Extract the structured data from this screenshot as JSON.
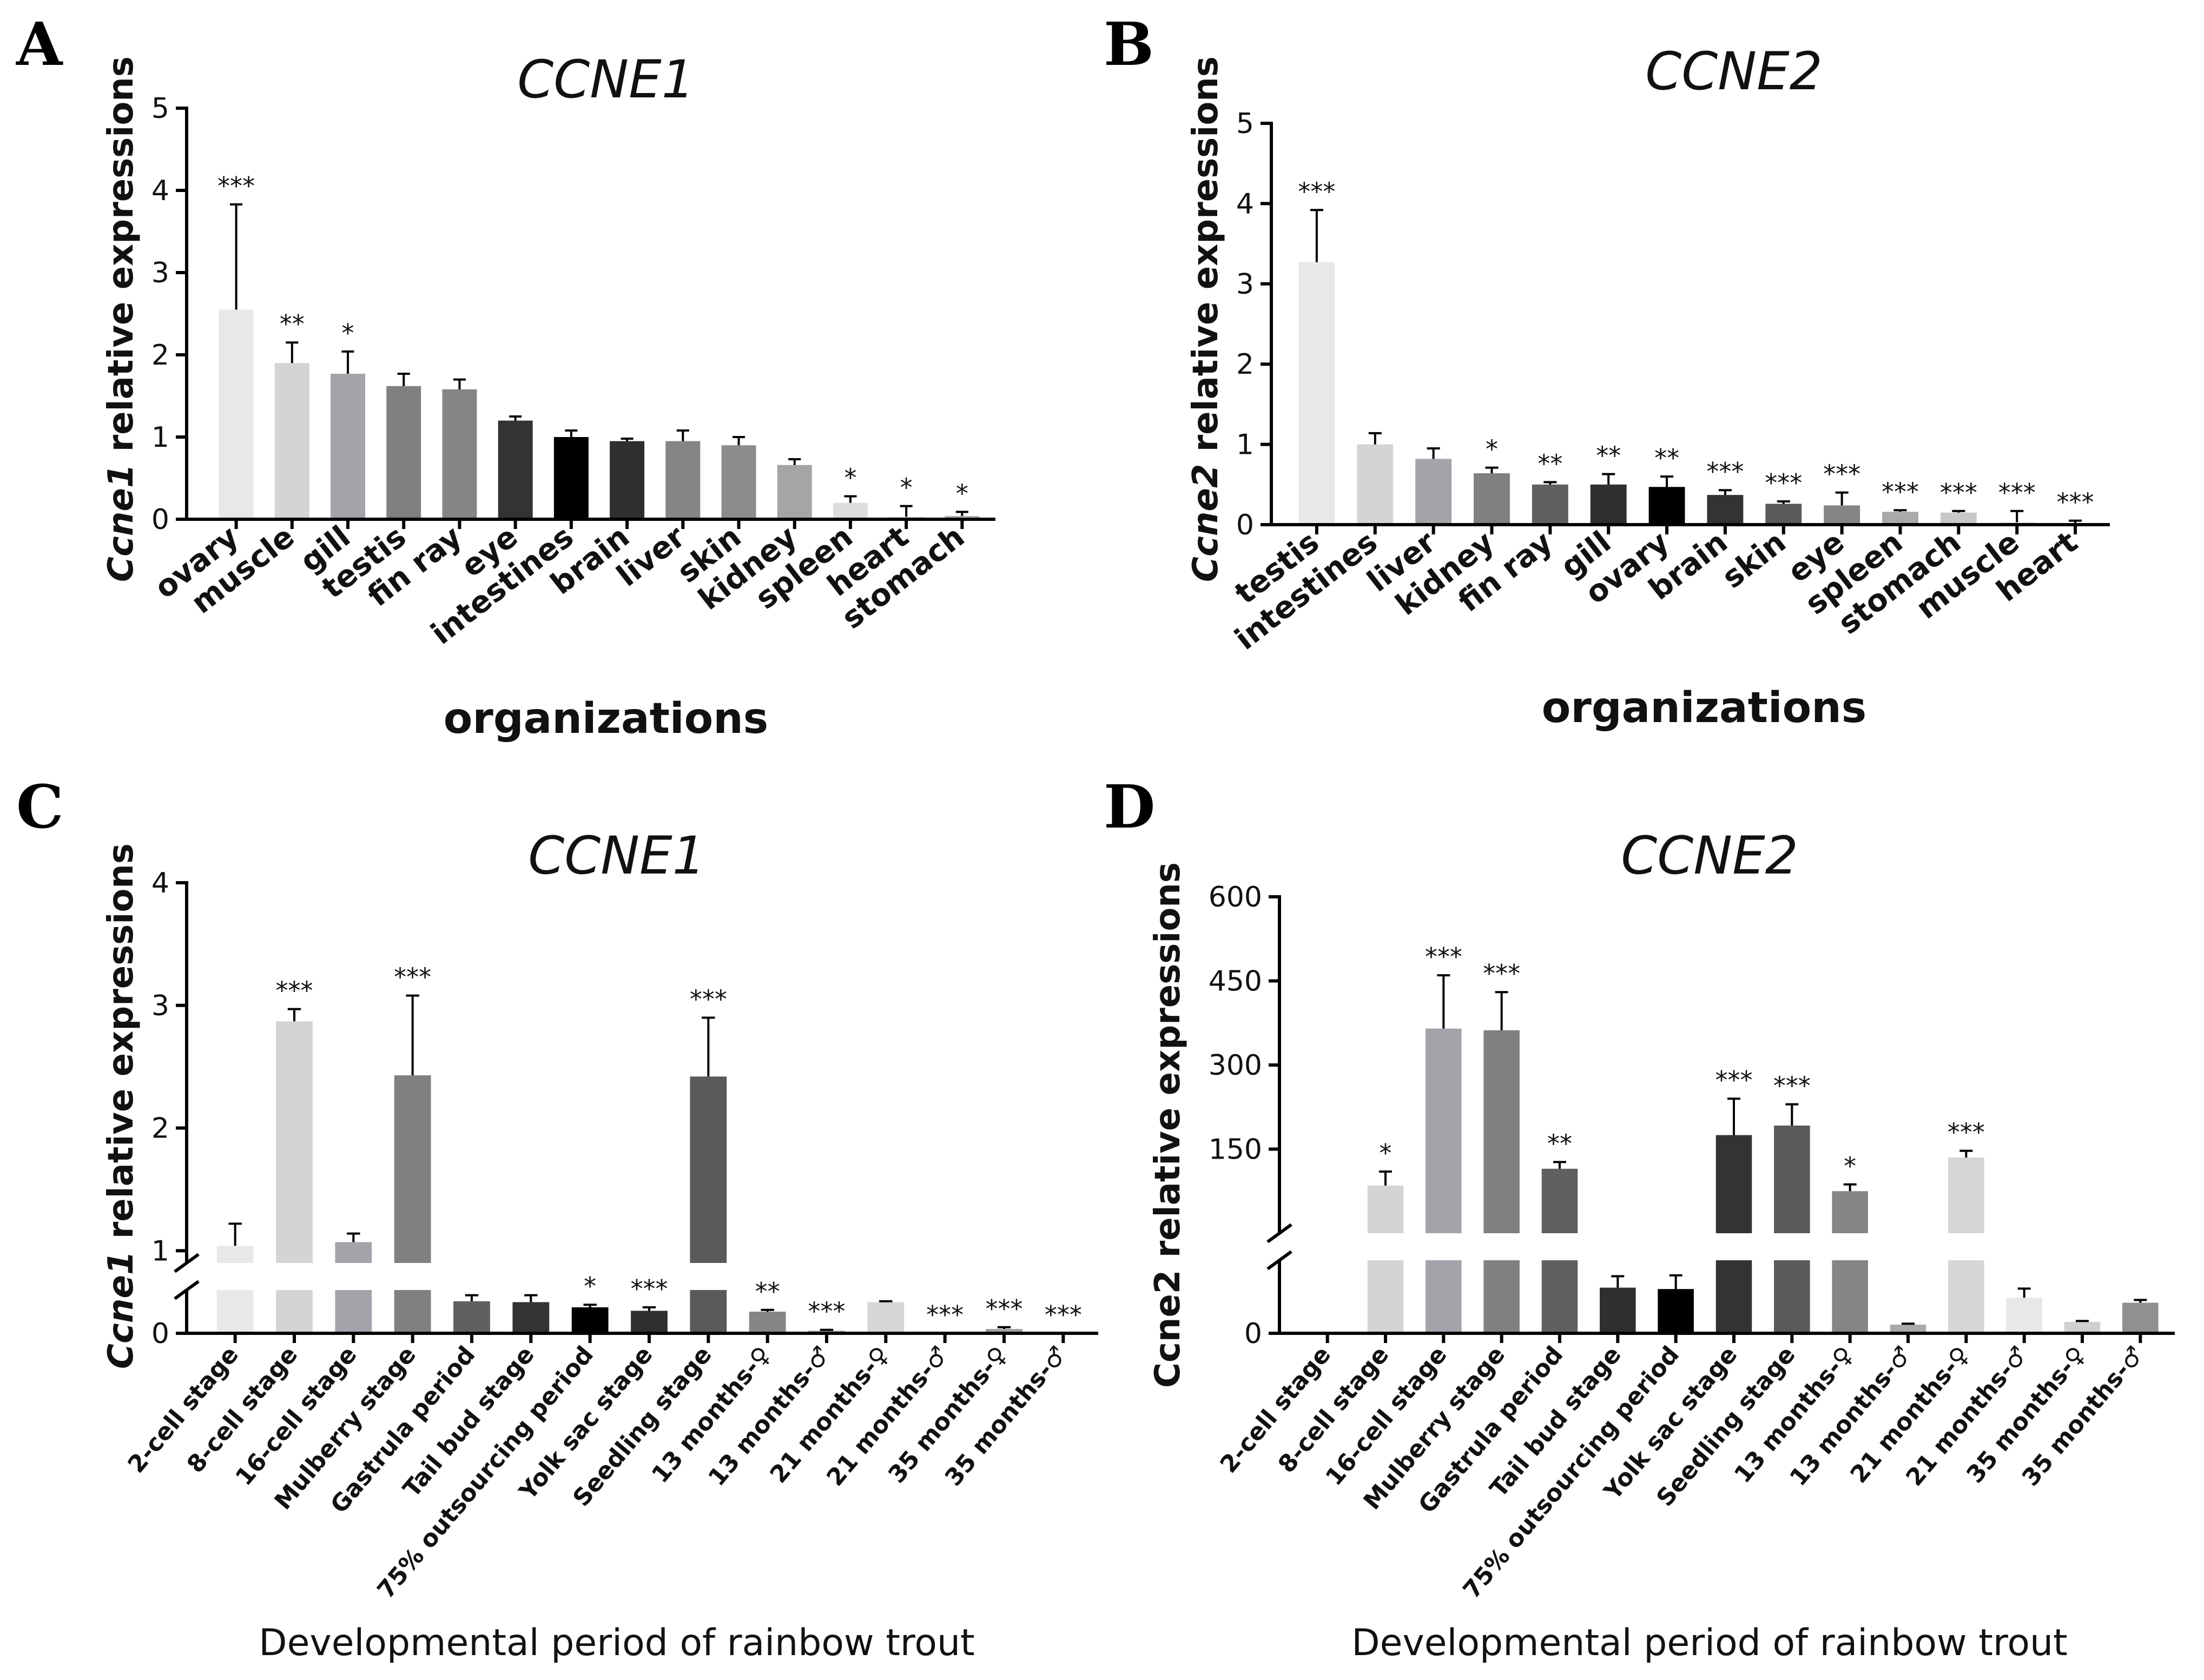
{
  "chart_data": [
    {
      "panel": "A",
      "type": "bar",
      "title": "CCNE1",
      "ylabel_gene": "Ccne1",
      "ylabel_rest": " relative expressions",
      "xlabel": "organizations",
      "ylim": [
        0,
        5
      ],
      "yticks": [
        0,
        1,
        2,
        3,
        4,
        5
      ],
      "categories": [
        "ovary",
        "muscle",
        "gill",
        "testis",
        "fin ray",
        "eye",
        "intestines",
        "brain",
        "liver",
        "skin",
        "kidney",
        "spleen",
        "heart",
        "stomach"
      ],
      "values": [
        2.55,
        1.9,
        1.77,
        1.62,
        1.58,
        1.2,
        1.0,
        0.95,
        0.95,
        0.9,
        0.66,
        0.2,
        0.03,
        0.04
      ],
      "errors": [
        1.28,
        0.25,
        0.27,
        0.15,
        0.12,
        0.05,
        0.08,
        0.03,
        0.13,
        0.1,
        0.07,
        0.08,
        0.13,
        0.05
      ],
      "significance": [
        "***",
        "**",
        "*",
        "",
        "",
        "",
        "",
        "",
        "",
        "",
        "",
        "*",
        "*",
        "*"
      ],
      "colors": [
        "#e8e8e8",
        "#d4d4d4",
        "#a3a3aa",
        "#808080",
        "#858585",
        "#333333",
        "#000000",
        "#2f2f2f",
        "#858585",
        "#8c8c8c",
        "#a5a5a5",
        "#dddddd",
        "#d8d8d8",
        "#b0b0b0"
      ]
    },
    {
      "panel": "B",
      "type": "bar",
      "title": "CCNE2",
      "ylabel_gene": "Ccne2",
      "ylabel_rest": " relative expressions",
      "xlabel": "organizations",
      "ylim": [
        0,
        5
      ],
      "yticks": [
        0,
        1,
        2,
        3,
        4,
        5
      ],
      "categories": [
        "testis",
        "intestines",
        "liver",
        "kidney",
        "fin ray",
        "gill",
        "ovary",
        "brain",
        "skin",
        "eye",
        "spleen",
        "stomach",
        "muscle",
        "heart"
      ],
      "values": [
        3.27,
        1.0,
        0.82,
        0.64,
        0.5,
        0.5,
        0.47,
        0.37,
        0.26,
        0.24,
        0.16,
        0.15,
        0.03,
        0.02
      ],
      "errors": [
        0.65,
        0.14,
        0.13,
        0.07,
        0.03,
        0.13,
        0.13,
        0.06,
        0.03,
        0.16,
        0.02,
        0.02,
        0.14,
        0.03
      ],
      "significance": [
        "***",
        "",
        "",
        "*",
        "**",
        "**",
        "**",
        "***",
        "***",
        "***",
        "***",
        "***",
        "***",
        "***"
      ],
      "colors": [
        "#e8e8e8",
        "#d4d4d4",
        "#a3a3aa",
        "#808080",
        "#606060",
        "#2f2f2f",
        "#000000",
        "#333333",
        "#5a5a5a",
        "#858585",
        "#aaaaaa",
        "#c8c8c8",
        "#e0e0e0",
        "#d0d0d0"
      ]
    },
    {
      "panel": "C",
      "type": "bar",
      "title": "CCNE1",
      "ylabel_gene": "Ccne1",
      "ylabel_rest": " relative expressions",
      "xlabel": "Developmental period of rainbow trout",
      "axis_break": true,
      "lower_ylim": [
        0,
        0.5
      ],
      "lower_yticks": [
        0
      ],
      "upper_ylim": [
        0.9,
        4
      ],
      "upper_yticks": [
        1,
        2,
        3,
        4
      ],
      "categories": [
        "2-cell stage",
        "8-cell stage",
        "16-cell stage",
        "Mulberry stage",
        "Gastrula period",
        "Tail bud stage",
        "75% outsourcing period",
        "Yolk sac stage",
        "Seedling stage",
        "13 months-♀",
        "13 months-♂",
        "21 months-♀",
        "21 months-♂",
        "35 months-♀",
        "35 months-♂"
      ],
      "values": [
        1.04,
        2.87,
        1.07,
        2.43,
        0.37,
        0.36,
        0.3,
        0.26,
        2.42,
        0.25,
        0.03,
        0.36,
        0.0,
        0.05,
        0.0
      ],
      "errors": [
        0.18,
        0.1,
        0.07,
        0.65,
        0.07,
        0.08,
        0.03,
        0.04,
        0.48,
        0.02,
        0.01,
        0.01,
        0.0,
        0.02,
        0.0
      ],
      "significance": [
        "",
        "***",
        "",
        "***",
        "",
        "",
        "*",
        "***",
        "***",
        "**",
        "***",
        "",
        "***",
        "***",
        "***"
      ],
      "colors": [
        "#e8e8e8",
        "#d4d4d4",
        "#a3a3aa",
        "#808080",
        "#606060",
        "#333333",
        "#000000",
        "#2f2f2f",
        "#5a5a5a",
        "#858585",
        "#aaaaaa",
        "#d6d6d6",
        "#e8e8e8",
        "#a0a0a0",
        "#909090"
      ]
    },
    {
      "panel": "D",
      "type": "bar",
      "title": "CCNE2",
      "ylabel": "Ccne2 relative expressions",
      "xlabel": "Developmental period of rainbow trout",
      "axis_break": true,
      "lower_ylim": [
        0,
        1.6
      ],
      "lower_yticks": [
        0
      ],
      "upper_ylim": [
        0,
        600
      ],
      "upper_yticks": [
        150,
        300,
        450,
        600
      ],
      "categories": [
        "2-cell stage",
        "8-cell stage",
        "16-cell stage",
        "Mulberry stage",
        "Gastrula period",
        "Tail bud stage",
        "75% outsourcing period",
        "Yolk sac stage",
        "Seedling stage",
        "13 months-♀",
        "13 months-♂",
        "21 months-♀",
        "21 months-♂",
        "35 months-♀",
        "35 months-♂"
      ],
      "values": [
        0.02,
        85,
        365,
        362,
        115,
        1.0,
        0.97,
        175,
        192,
        75,
        0.19,
        135,
        0.78,
        0.25,
        0.67
      ],
      "errors": [
        0.0,
        25,
        95,
        68,
        12,
        0.25,
        0.3,
        65,
        38,
        12,
        0.02,
        12,
        0.2,
        0.02,
        0.06
      ],
      "significance": [
        "",
        "*",
        "***",
        "***",
        "**",
        "",
        "",
        "***",
        "***",
        "*",
        "",
        "***",
        "",
        "",
        ""
      ],
      "colors": [
        "#e8e8e8",
        "#d4d4d4",
        "#a3a3aa",
        "#808080",
        "#606060",
        "#2f2f2f",
        "#000000",
        "#333333",
        "#5a5a5a",
        "#858585",
        "#aaaaaa",
        "#d6d6d6",
        "#e8e8e8",
        "#cfcfcf",
        "#909090"
      ]
    }
  ]
}
